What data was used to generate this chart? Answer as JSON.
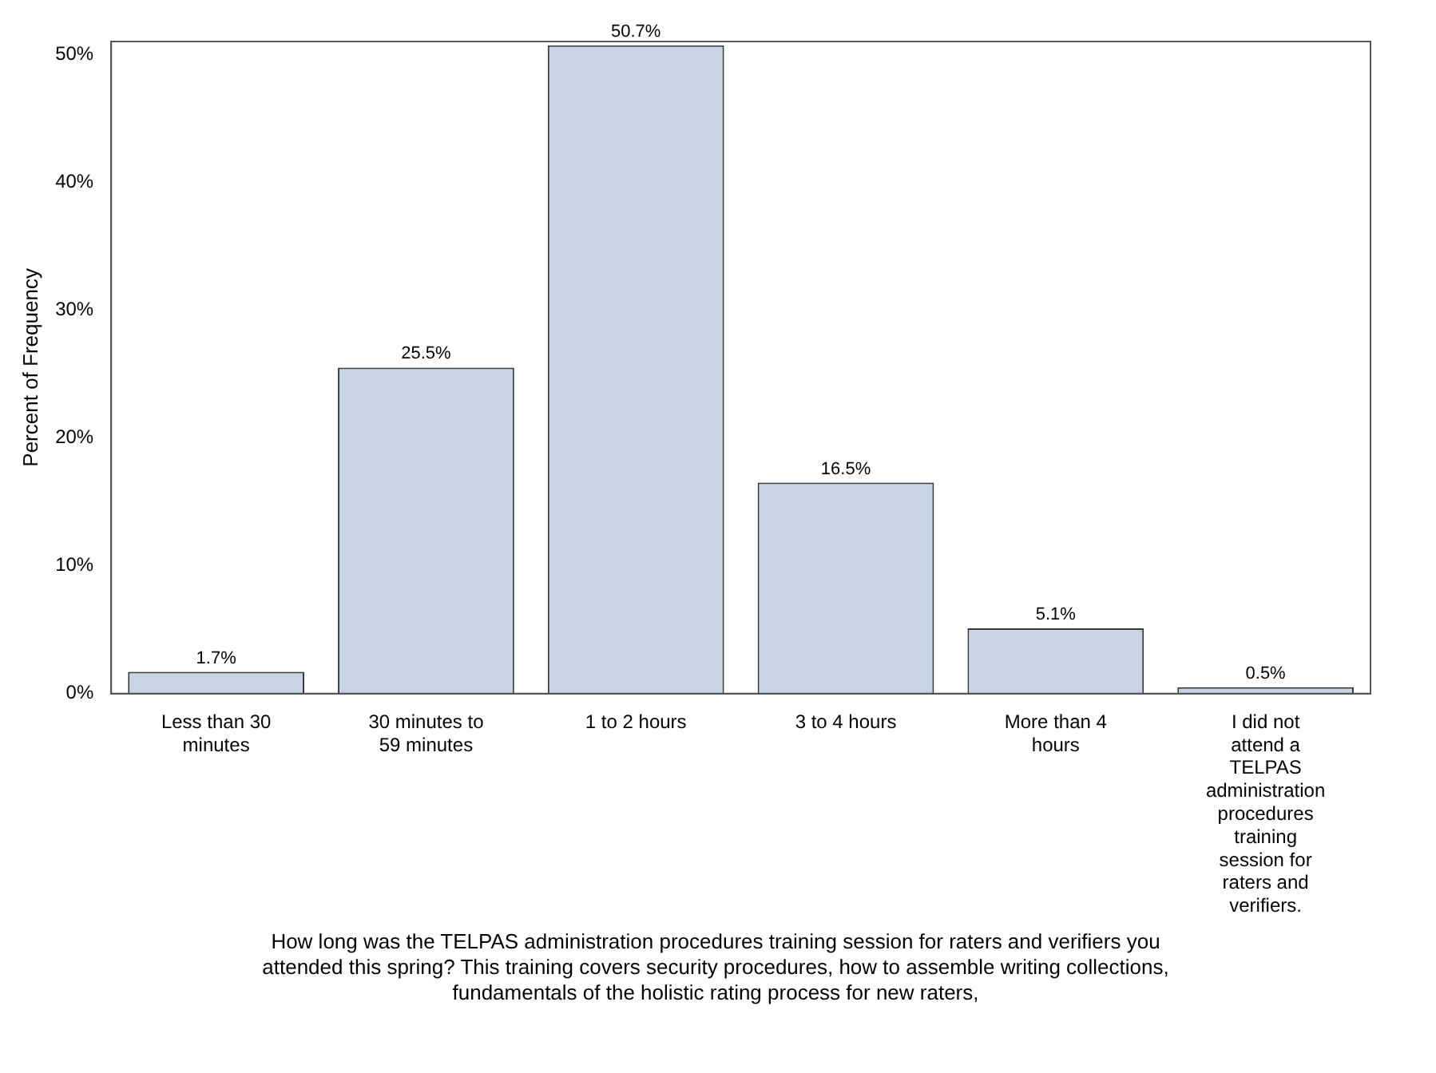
{
  "chart_data": {
    "type": "bar",
    "ylabel": "Percent of Frequency",
    "annotations": [
      "How long was the TELPAS administration procedures training session for raters and verifiers you attended this spring? This training covers security procedures, how to assemble writing collections, fundamentals of the holistic rating process for new raters,"
    ],
    "categories": [
      "Less than 30 minutes",
      "30 minutes to 59 minutes",
      "1 to 2 hours",
      "3 to 4 hours",
      "More than 4 hours",
      "I did not attend a TELPAS administration procedures training session for raters and verifiers."
    ],
    "values": [
      1.7,
      25.5,
      50.7,
      16.5,
      5.1,
      0.5
    ],
    "value_labels": [
      "1.7%",
      "25.5%",
      "50.7%",
      "16.5%",
      "5.1%",
      "0.5%"
    ],
    "color": "#c7d4e5",
    "ylim": [
      0,
      51
    ],
    "yticks": [
      {
        "value": 0,
        "label": "0%"
      },
      {
        "value": 10,
        "label": "10%"
      },
      {
        "value": 20,
        "label": "20%"
      },
      {
        "value": 30,
        "label": "30%"
      },
      {
        "value": 40,
        "label": "40%"
      },
      {
        "value": 50,
        "label": "50%"
      }
    ],
    "grid": false,
    "legend": false
  }
}
